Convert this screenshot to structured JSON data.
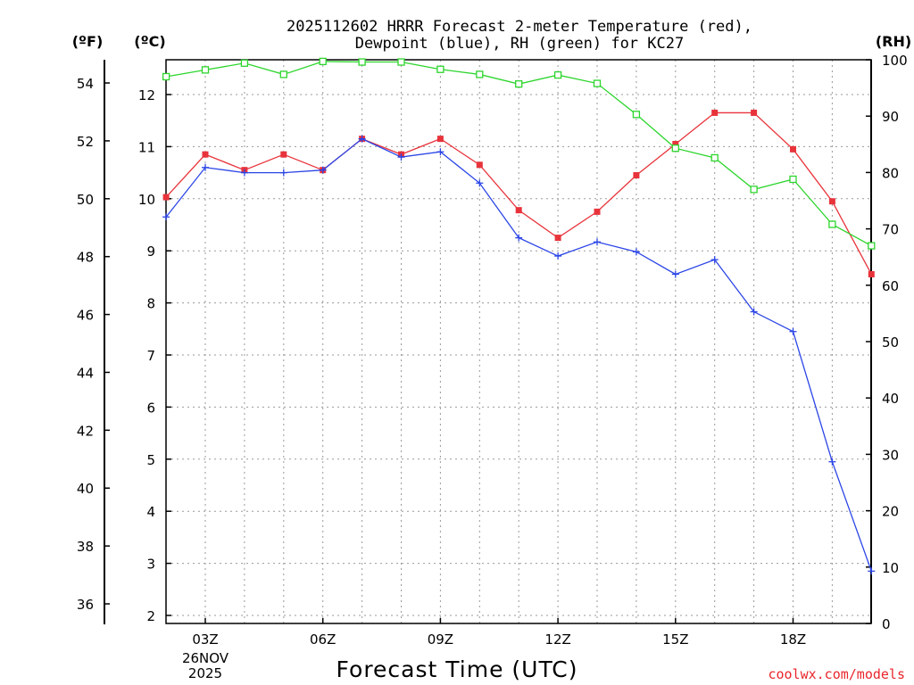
{
  "chart_data": {
    "type": "line",
    "title": "2025112602 HRRR Forecast 2-meter Temperature (red),",
    "title_line2": "Dewpoint (blue), RH (green) for KC27",
    "xlabel": "Forecast Time (UTC)",
    "x_date_line1": "26NOV",
    "x_date_line2": "2025",
    "units": {
      "fahrenheit": "(ºF)",
      "celsius": "(ºC)",
      "rh": "(RH)"
    },
    "x": [
      2,
      3,
      4,
      5,
      6,
      7,
      8,
      9,
      10,
      11,
      12,
      13,
      14,
      15,
      16,
      17,
      18,
      19,
      20
    ],
    "xlim": [
      2,
      20
    ],
    "x_ticks": [
      {
        "x": 3,
        "label": "03Z"
      },
      {
        "x": 6,
        "label": "06Z"
      },
      {
        "x": 9,
        "label": "09Z"
      },
      {
        "x": 12,
        "label": "12Z"
      },
      {
        "x": 15,
        "label": "15Z"
      },
      {
        "x": 18,
        "label": "18Z"
      }
    ],
    "ylim_c": [
      2,
      12.8
    ],
    "ylim_rh": [
      0,
      100
    ],
    "y_left_f_ticks": [
      "36",
      "38",
      "40",
      "42",
      "44",
      "46",
      "48",
      "50",
      "52",
      "54"
    ],
    "y_left_c_ticks": [
      "2",
      "3",
      "4",
      "5",
      "6",
      "7",
      "8",
      "9",
      "10",
      "11",
      "12"
    ],
    "y_right_rh_ticks": [
      "0",
      "10",
      "20",
      "30",
      "40",
      "50",
      "60",
      "70",
      "80",
      "90",
      "100"
    ],
    "series": [
      {
        "name": "Temperature (°C)",
        "color": "#e8333b",
        "marker": "filled-square",
        "axis": "celsius",
        "values": [
          10.03,
          10.85,
          10.55,
          10.85,
          10.55,
          11.15,
          10.85,
          11.15,
          10.65,
          9.78,
          9.25,
          9.75,
          10.45,
          11.05,
          11.65,
          11.65,
          10.95,
          9.95,
          8.55
        ]
      },
      {
        "name": "Dewpoint (°C)",
        "color": "#2b45e6",
        "marker": "plus",
        "axis": "celsius",
        "values": [
          9.65,
          10.6,
          10.5,
          10.5,
          10.55,
          11.15,
          10.8,
          10.9,
          10.3,
          9.25,
          8.9,
          9.17,
          8.98,
          8.55,
          8.83,
          7.83,
          7.45,
          4.95,
          2.85
        ]
      },
      {
        "name": "RH (%)",
        "color": "#2cd52c",
        "marker": "open-square",
        "axis": "rh",
        "values": [
          97,
          98.2,
          99.4,
          97.4,
          99.7,
          99.6,
          99.6,
          98.3,
          97.4,
          95.7,
          97.3,
          95.8,
          90.3,
          84.3,
          82.6,
          77,
          78.8,
          70.8,
          67
        ]
      }
    ]
  },
  "credit": "coolwx.com/models"
}
